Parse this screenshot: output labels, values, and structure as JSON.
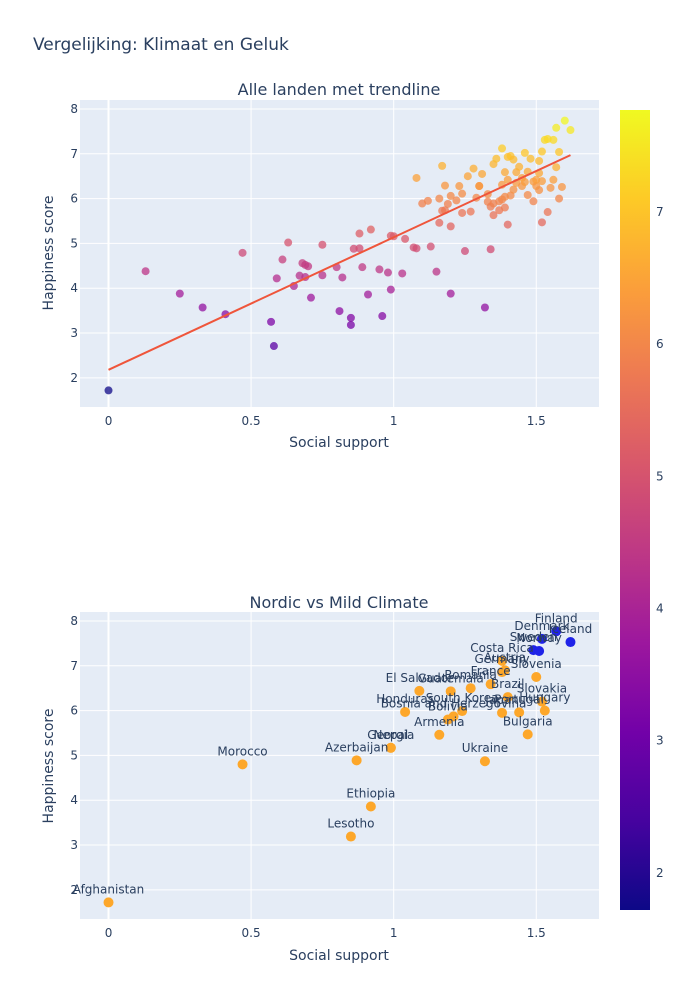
{
  "title": "Vergelijking: Klimaat en Geluk",
  "colorbar": {
    "ticks": [
      2,
      3,
      4,
      5,
      6,
      7
    ],
    "range": [
      1.72,
      7.77
    ],
    "colors": [
      "#0d0887",
      "#46039f",
      "#7201a8",
      "#9c179e",
      "#bd3786",
      "#d8576b",
      "#ed7953",
      "#fb9f3a",
      "#fdca26",
      "#f0f921"
    ]
  },
  "chart_data": [
    {
      "type": "scatter",
      "title": "Alle landen met trendline",
      "xlabel": "Social support",
      "ylabel": "Happiness score",
      "xlim": [
        -0.1,
        1.72
      ],
      "ylim": [
        1.35,
        8.2
      ],
      "xticks": [
        0,
        0.5,
        1,
        1.5
      ],
      "xtick_labels": [
        "0",
        "0.5",
        "1",
        "1.5"
      ],
      "yticks": [
        2,
        3,
        4,
        5,
        6,
        7,
        8
      ],
      "grid": true,
      "trendline": {
        "x": [
          0,
          1.62
        ],
        "y": [
          2.18,
          6.97
        ],
        "color": "#ef553b"
      },
      "points": [
        [
          0,
          1.72
        ],
        [
          0.13,
          4.38
        ],
        [
          0.25,
          3.88
        ],
        [
          0.33,
          3.57
        ],
        [
          0.41,
          3.42
        ],
        [
          0.47,
          4.79
        ],
        [
          0.57,
          3.25
        ],
        [
          0.58,
          2.71
        ],
        [
          0.59,
          4.22
        ],
        [
          0.61,
          4.64
        ],
        [
          0.63,
          5.02
        ],
        [
          0.65,
          4.05
        ],
        [
          0.67,
          4.28
        ],
        [
          0.68,
          4.56
        ],
        [
          0.69,
          4.52
        ],
        [
          0.69,
          4.25
        ],
        [
          0.7,
          4.49
        ],
        [
          0.71,
          3.79
        ],
        [
          0.75,
          4.29
        ],
        [
          0.75,
          4.97
        ],
        [
          0.8,
          4.47
        ],
        [
          0.81,
          3.49
        ],
        [
          0.82,
          4.24
        ],
        [
          0.85,
          3.18
        ],
        [
          0.85,
          3.34
        ],
        [
          0.86,
          4.88
        ],
        [
          0.88,
          4.89
        ],
        [
          0.88,
          5.22
        ],
        [
          0.89,
          4.47
        ],
        [
          0.91,
          3.86
        ],
        [
          0.92,
          5.31
        ],
        [
          0.95,
          4.42
        ],
        [
          0.96,
          3.38
        ],
        [
          0.98,
          4.35
        ],
        [
          0.99,
          3.97
        ],
        [
          0.99,
          5.17
        ],
        [
          1.0,
          5.16
        ],
        [
          1.03,
          4.33
        ],
        [
          1.04,
          5.1
        ],
        [
          1.07,
          4.91
        ],
        [
          1.08,
          4.89
        ],
        [
          1.08,
          6.46
        ],
        [
          1.1,
          5.89
        ],
        [
          1.12,
          5.95
        ],
        [
          1.13,
          4.93
        ],
        [
          1.15,
          4.37
        ],
        [
          1.16,
          6.0
        ],
        [
          1.16,
          5.46
        ],
        [
          1.17,
          5.73
        ],
        [
          1.17,
          6.73
        ],
        [
          1.18,
          5.74
        ],
        [
          1.18,
          6.29
        ],
        [
          1.19,
          5.88
        ],
        [
          1.2,
          6.06
        ],
        [
          1.2,
          5.38
        ],
        [
          1.2,
          3.88
        ],
        [
          1.22,
          5.96
        ],
        [
          1.23,
          6.28
        ],
        [
          1.24,
          6.11
        ],
        [
          1.24,
          5.68
        ],
        [
          1.25,
          4.83
        ],
        [
          1.26,
          6.5
        ],
        [
          1.27,
          5.71
        ],
        [
          1.28,
          6.67
        ],
        [
          1.29,
          6.02
        ],
        [
          1.3,
          6.28
        ],
        [
          1.3,
          6.28
        ],
        [
          1.31,
          6.55
        ],
        [
          1.32,
          3.57
        ],
        [
          1.33,
          5.93
        ],
        [
          1.33,
          6.1
        ],
        [
          1.34,
          4.87
        ],
        [
          1.34,
          5.82
        ],
        [
          1.35,
          6.77
        ],
        [
          1.35,
          5.63
        ],
        [
          1.35,
          5.89
        ],
        [
          1.36,
          6.89
        ],
        [
          1.37,
          5.74
        ],
        [
          1.37,
          5.94
        ],
        [
          1.38,
          6.31
        ],
        [
          1.38,
          5.98
        ],
        [
          1.38,
          7.12
        ],
        [
          1.39,
          6.59
        ],
        [
          1.39,
          5.8
        ],
        [
          1.39,
          6.04
        ],
        [
          1.4,
          6.93
        ],
        [
          1.4,
          5.42
        ],
        [
          1.4,
          6.42
        ],
        [
          1.41,
          6.07
        ],
        [
          1.41,
          6.95
        ],
        [
          1.42,
          6.87
        ],
        [
          1.42,
          6.2
        ],
        [
          1.43,
          6.35
        ],
        [
          1.43,
          6.59
        ],
        [
          1.44,
          6.71
        ],
        [
          1.45,
          6.28
        ],
        [
          1.45,
          6.46
        ],
        [
          1.46,
          7.02
        ],
        [
          1.46,
          6.37
        ],
        [
          1.47,
          6.08
        ],
        [
          1.47,
          6.6
        ],
        [
          1.48,
          6.89
        ],
        [
          1.49,
          6.38
        ],
        [
          1.49,
          5.94
        ],
        [
          1.5,
          6.28
        ],
        [
          1.5,
          6.42
        ],
        [
          1.51,
          6.57
        ],
        [
          1.51,
          6.84
        ],
        [
          1.51,
          6.19
        ],
        [
          1.52,
          5.47
        ],
        [
          1.52,
          7.05
        ],
        [
          1.52,
          6.39
        ],
        [
          1.53,
          7.31
        ],
        [
          1.54,
          5.7
        ],
        [
          1.54,
          7.33
        ],
        [
          1.55,
          6.24
        ],
        [
          1.56,
          7.31
        ],
        [
          1.56,
          6.42
        ],
        [
          1.57,
          6.7
        ],
        [
          1.57,
          7.58
        ],
        [
          1.58,
          7.04
        ],
        [
          1.58,
          6.0
        ],
        [
          1.59,
          6.26
        ],
        [
          1.6,
          7.74
        ],
        [
          1.62,
          7.53
        ]
      ]
    },
    {
      "type": "scatter",
      "title": "Nordic vs Mild Climate",
      "xlabel": "Social support",
      "ylabel": "Happiness score",
      "xlim": [
        -0.1,
        1.72
      ],
      "ylim": [
        1.35,
        8.2
      ],
      "xticks": [
        0,
        0.5,
        1,
        1.5
      ],
      "xtick_labels": [
        "0",
        "0.5",
        "1",
        "1.5"
      ],
      "yticks": [
        2,
        3,
        4,
        5,
        6,
        7,
        8
      ],
      "grid": true,
      "series_colors": {
        "nordic": "#1f23e8",
        "mild": "#fda72a"
      },
      "points": [
        {
          "label": "Afghanistan",
          "x": 0,
          "y": 1.72,
          "group": "mild"
        },
        {
          "label": "Morocco",
          "x": 0.47,
          "y": 4.8,
          "group": "mild"
        },
        {
          "label": "Azerbaijan",
          "x": 0.87,
          "y": 4.89,
          "group": "mild"
        },
        {
          "label": "Georgia",
          "x": 0.99,
          "y": 5.17,
          "group": "mild"
        },
        {
          "label": "Nepal",
          "x": 0.99,
          "y": 5.17,
          "group": "mild"
        },
        {
          "label": "Ethiopia",
          "x": 0.92,
          "y": 3.86,
          "group": "mild"
        },
        {
          "label": "Lesotho",
          "x": 0.85,
          "y": 3.19,
          "group": "mild"
        },
        {
          "label": "Ukraine",
          "x": 1.32,
          "y": 4.87,
          "group": "mild"
        },
        {
          "label": "Armenia",
          "x": 1.16,
          "y": 5.46,
          "group": "mild"
        },
        {
          "label": "Bulgaria",
          "x": 1.47,
          "y": 5.47,
          "group": "mild"
        },
        {
          "label": "Honduras",
          "x": 1.04,
          "y": 5.97,
          "group": "mild"
        },
        {
          "label": "Bolivia",
          "x": 1.19,
          "y": 5.8,
          "group": "mild"
        },
        {
          "label": "Bosnia and Herzegovina",
          "x": 1.21,
          "y": 5.87,
          "group": "mild"
        },
        {
          "label": "South Korea",
          "x": 1.24,
          "y": 5.99,
          "group": "mild"
        },
        {
          "label": "Guatemala",
          "x": 1.2,
          "y": 6.43,
          "group": "mild"
        },
        {
          "label": "El Salvador",
          "x": 1.09,
          "y": 6.44,
          "group": "mild"
        },
        {
          "label": "Romania",
          "x": 1.27,
          "y": 6.5,
          "group": "mild"
        },
        {
          "label": "Hungary",
          "x": 1.53,
          "y": 6.0,
          "group": "mild"
        },
        {
          "label": "Japan",
          "x": 1.38,
          "y": 5.95,
          "group": "mild"
        },
        {
          "label": "Portugal",
          "x": 1.44,
          "y": 5.96,
          "group": "mild"
        },
        {
          "label": "Slovakia",
          "x": 1.52,
          "y": 6.2,
          "group": "mild"
        },
        {
          "label": "Brazil",
          "x": 1.4,
          "y": 6.3,
          "group": "mild"
        },
        {
          "label": "France",
          "x": 1.34,
          "y": 6.59,
          "group": "mild"
        },
        {
          "label": "Slovenia",
          "x": 1.5,
          "y": 6.75,
          "group": "mild"
        },
        {
          "label": "Germany",
          "x": 1.38,
          "y": 6.86,
          "group": "mild"
        },
        {
          "label": "Costa Rica",
          "x": 1.38,
          "y": 7.11,
          "group": "mild"
        },
        {
          "label": "Austria",
          "x": 1.39,
          "y": 6.9,
          "group": "mild"
        },
        {
          "label": "Sweden",
          "x": 1.49,
          "y": 7.35,
          "group": "nordic"
        },
        {
          "label": "Norway",
          "x": 1.51,
          "y": 7.33,
          "group": "nordic"
        },
        {
          "label": "Denmark",
          "x": 1.52,
          "y": 7.6,
          "group": "nordic"
        },
        {
          "label": "Finland",
          "x": 1.57,
          "y": 7.77,
          "group": "nordic"
        },
        {
          "label": "Iceland",
          "x": 1.62,
          "y": 7.53,
          "group": "nordic"
        }
      ]
    }
  ]
}
